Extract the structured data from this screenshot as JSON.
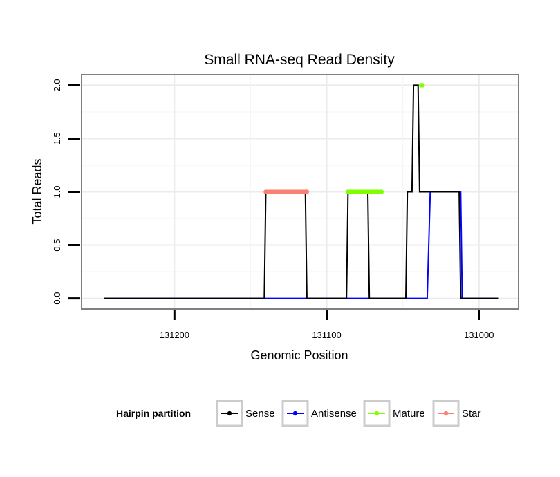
{
  "chart_data": {
    "type": "line",
    "title": "Small RNA-seq Read Density",
    "xlabel": "Genomic Position",
    "ylabel": "Total Reads",
    "x_reversed": true,
    "xlim": [
      131261,
      130974
    ],
    "ylim": [
      -0.1,
      2.1
    ],
    "x_ticks": [
      131200,
      131100,
      131000
    ],
    "x_tick_labels": [
      "131200",
      "131100",
      "131000"
    ],
    "y_ticks": [
      0.0,
      0.5,
      1.0,
      1.5,
      2.0
    ],
    "y_tick_labels": [
      "0.0",
      "0.5",
      "1.0",
      "1.5",
      "2.0"
    ],
    "grid": true,
    "legend": {
      "title": "Hairpin partition",
      "position": "bottom",
      "entries": [
        "Sense",
        "Antisense",
        "Mature",
        "Star"
      ]
    },
    "series": [
      {
        "name": "Sense",
        "color": "#000000",
        "x": [
          131246,
          131141,
          131140,
          131114,
          131113,
          131087,
          131086,
          131073,
          131072,
          131048,
          131047,
          131044,
          131043,
          131040,
          131039,
          131013,
          131012,
          130987
        ],
        "y": [
          0,
          0,
          1,
          1,
          0,
          0,
          1,
          1,
          0,
          0,
          1,
          1,
          2,
          2,
          1,
          1,
          0,
          0
        ]
      },
      {
        "name": "Antisense",
        "color": "#0000ff",
        "x": [
          131246,
          131034,
          131032,
          131012,
          131011,
          130987
        ],
        "y": [
          0,
          0,
          1,
          1,
          0,
          0
        ]
      },
      {
        "name": "Mature",
        "color": "#7fff00",
        "segments": [
          {
            "x": [
              131086,
              131064
            ],
            "y": [
              1,
              1
            ]
          },
          {
            "x": [
              131038,
              131037
            ],
            "y": [
              2,
              2
            ]
          }
        ]
      },
      {
        "name": "Star",
        "color": "#fa8072",
        "segments": [
          {
            "x": [
              131140,
              131113
            ],
            "y": [
              1,
              1
            ]
          }
        ]
      }
    ]
  }
}
